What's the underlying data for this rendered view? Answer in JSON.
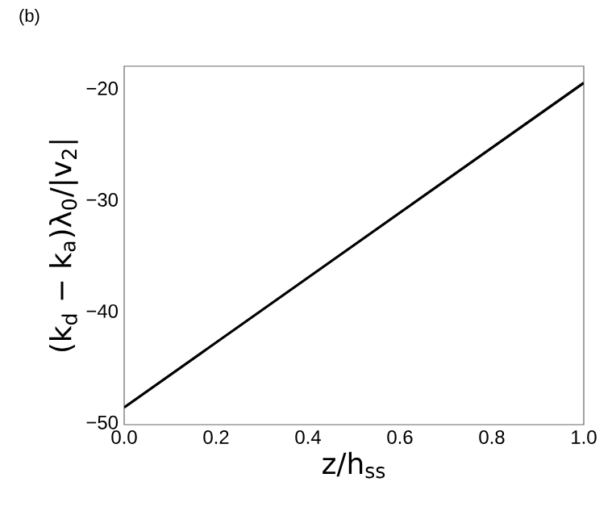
{
  "chart_data": {
    "type": "line",
    "xlabel": "z/h$_{ss}$",
    "ylabel": "(k$_{d}$ − k$_{a}$)λ$_{0}$/|v$_{2}$|",
    "annotations": [
      "(b)"
    ],
    "x": [
      0.0,
      1.0
    ],
    "series": [
      {
        "color": "#000000",
        "values": [
          -48.65,
          -19.5
        ]
      }
    ],
    "xlim": [
      0.0,
      1.0
    ],
    "xticks": [
      {
        "value": 0.0,
        "label": "0.0"
      },
      {
        "value": 0.2,
        "label": "0.2"
      },
      {
        "value": 0.4,
        "label": "0.4"
      },
      {
        "value": 0.6,
        "label": "0.6"
      },
      {
        "value": 0.8,
        "label": "0.8"
      },
      {
        "value": 1.0,
        "label": "1.0"
      }
    ],
    "ylim": [
      -50.2,
      -18
    ],
    "yticks": [
      {
        "value": -50,
        "label": "−50"
      },
      {
        "value": -40,
        "label": "−40"
      },
      {
        "value": -30,
        "label": "−30"
      },
      {
        "value": -20,
        "label": "−20"
      }
    ]
  }
}
